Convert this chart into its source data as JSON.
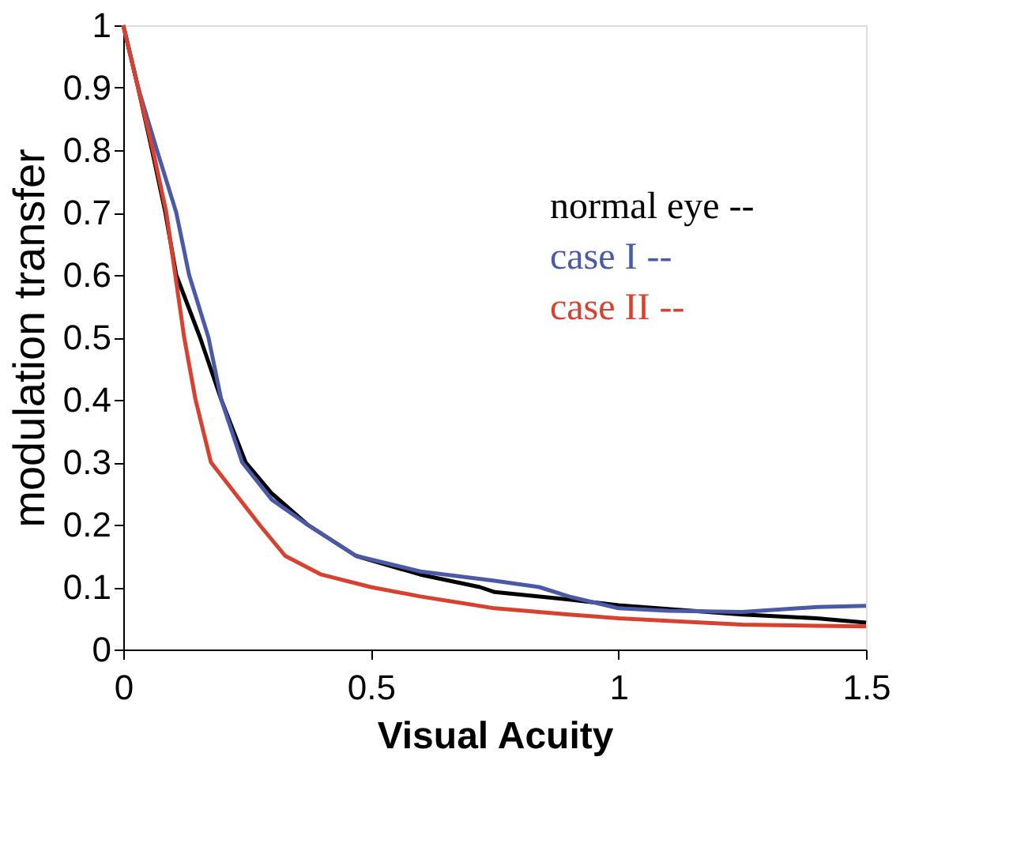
{
  "chart_data": {
    "type": "line",
    "xlabel": "Visual Acuity",
    "ylabel": "modulation transfer",
    "xlim": [
      0,
      1.5
    ],
    "ylim": [
      0,
      1
    ],
    "xticks": [
      0,
      0.5,
      1,
      1.5
    ],
    "yticks": [
      0,
      0.1,
      0.2,
      0.3,
      0.4,
      0.5,
      0.6,
      0.7,
      0.8,
      0.9,
      1
    ],
    "grid": false,
    "marker": "none",
    "line_style": "solid",
    "series": [
      {
        "name": "normal eye --",
        "color": "#000000",
        "x": [
          0,
          0.03,
          0.058,
          0.085,
          0.107,
          0.155,
          0.198,
          0.247,
          0.3,
          0.372,
          0.47,
          0.6,
          0.72,
          0.75,
          0.9,
          1.0,
          1.1,
          1.25,
          1.4,
          1.5
        ],
        "values": [
          1,
          0.9,
          0.8,
          0.7,
          0.6,
          0.5,
          0.4,
          0.3,
          0.25,
          0.2,
          0.15,
          0.12,
          0.1,
          0.092,
          0.08,
          0.071,
          0.065,
          0.056,
          0.05,
          0.043
        ]
      },
      {
        "name": "case I --",
        "color": "#4a5aa8",
        "x": [
          0,
          0.03,
          0.068,
          0.107,
          0.133,
          0.172,
          0.198,
          0.24,
          0.3,
          0.372,
          0.47,
          0.6,
          0.75,
          0.84,
          0.9,
          1.0,
          1.1,
          1.25,
          1.4,
          1.5
        ],
        "values": [
          1,
          0.9,
          0.8,
          0.7,
          0.6,
          0.5,
          0.4,
          0.3,
          0.24,
          0.2,
          0.15,
          0.125,
          0.11,
          0.1,
          0.085,
          0.066,
          0.062,
          0.06,
          0.068,
          0.07
        ]
      },
      {
        "name": "case II --",
        "color": "#d8412f",
        "x": [
          0,
          0.03,
          0.06,
          0.087,
          0.105,
          0.123,
          0.146,
          0.177,
          0.275,
          0.327,
          0.4,
          0.5,
          0.6,
          0.75,
          0.9,
          1.0,
          1.1,
          1.25,
          1.4,
          1.5
        ],
        "values": [
          1,
          0.9,
          0.8,
          0.7,
          0.6,
          0.5,
          0.4,
          0.3,
          0.2,
          0.15,
          0.12,
          0.1,
          0.085,
          0.066,
          0.056,
          0.05,
          0.046,
          0.04,
          0.038,
          0.037
        ]
      }
    ]
  }
}
